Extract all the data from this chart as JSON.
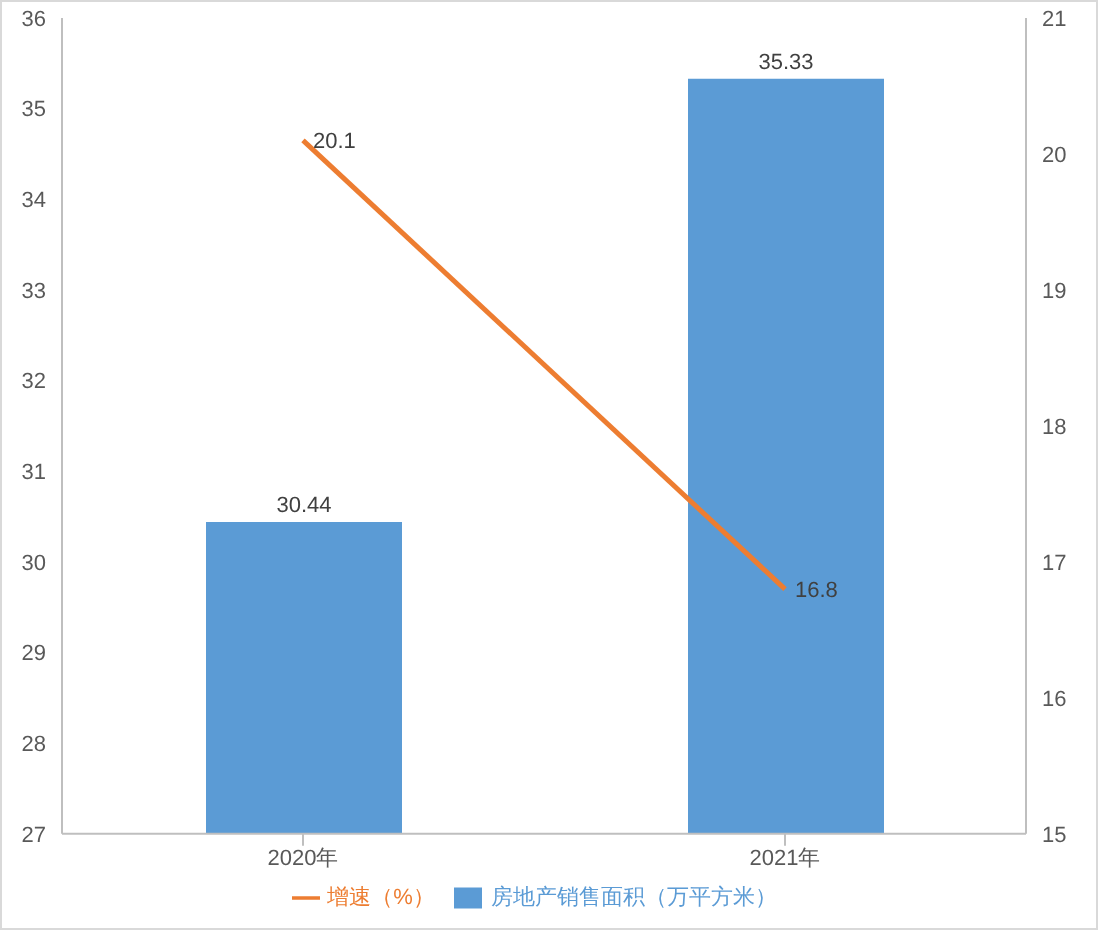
{
  "chart_data": {
    "type": "bar",
    "categories": [
      "2020年",
      "2021年"
    ],
    "series": [
      {
        "name": "房地产销售面积（万平方米）",
        "color": "#5b9bd5",
        "values": [
          30.44,
          35.33
        ]
      },
      {
        "name": "增速（%）",
        "type": "line",
        "axis": "y2",
        "color": "#ed7d31",
        "values": [
          20.1,
          16.8
        ]
      }
    ],
    "ylim": [
      27,
      36
    ],
    "yticks": [
      27,
      28,
      29,
      30,
      31,
      32,
      33,
      34,
      35,
      36
    ],
    "y2lim": [
      15,
      21
    ],
    "y2ticks": [
      15,
      16,
      17,
      18,
      19,
      20,
      21
    ],
    "data_labels": true,
    "legend": "bottom",
    "grid": false,
    "marker": "none"
  }
}
